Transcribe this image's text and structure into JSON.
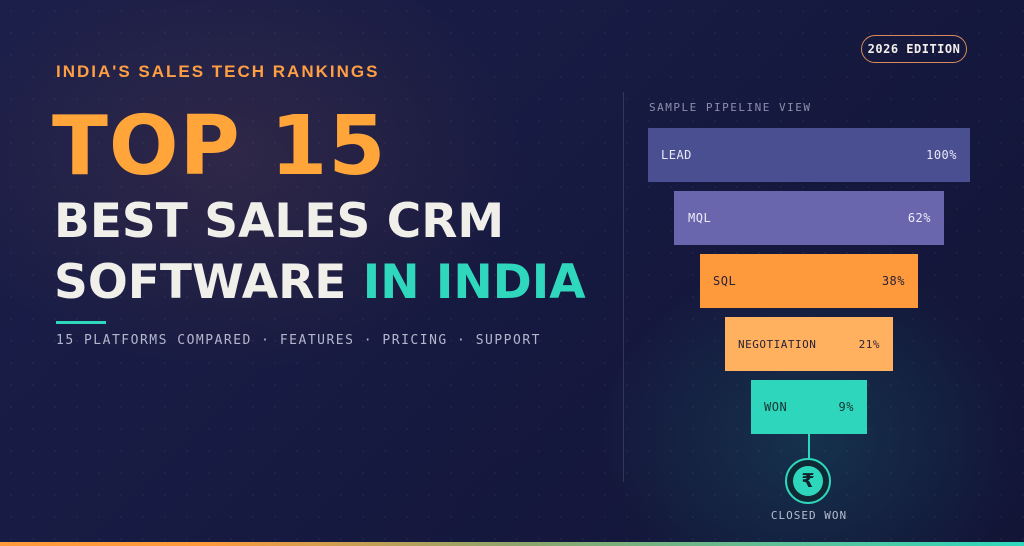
{
  "hero": {
    "kicker": "INDIA'S SALES TECH RANKINGS",
    "top_label": "TOP 15",
    "title_line1": "BEST SALES CRM",
    "title_line2_main": "SOFTWARE",
    "title_line2_accent": "IN INDIA",
    "tagline": "15 PLATFORMS COMPARED · FEATURES · PRICING · SUPPORT"
  },
  "badge": {
    "edition": "2026 EDITION"
  },
  "pipeline": {
    "label": "SAMPLE PIPELINE VIEW",
    "stages": [
      {
        "name": "LEAD",
        "percent": "100%",
        "value": 100,
        "color": "#4a4f92"
      },
      {
        "name": "MQL",
        "percent": "62%",
        "value": 62,
        "color": "#6a66ad"
      },
      {
        "name": "SQL",
        "percent": "38%",
        "value": 38,
        "color": "#ff9a3c"
      },
      {
        "name": "NEGOTIATION",
        "percent": "21%",
        "value": 21,
        "color": "#ffb160"
      },
      {
        "name": "WON",
        "percent": "9%",
        "value": 9,
        "color": "#2ed6bc"
      }
    ],
    "closed_icon": "rupee-icon",
    "closed_symbol": "₹",
    "closed_label": "CLOSED WON"
  },
  "colors": {
    "accent_orange": "#ffa53a",
    "accent_teal": "#2fd8bd",
    "background": "#1b1f4a"
  }
}
